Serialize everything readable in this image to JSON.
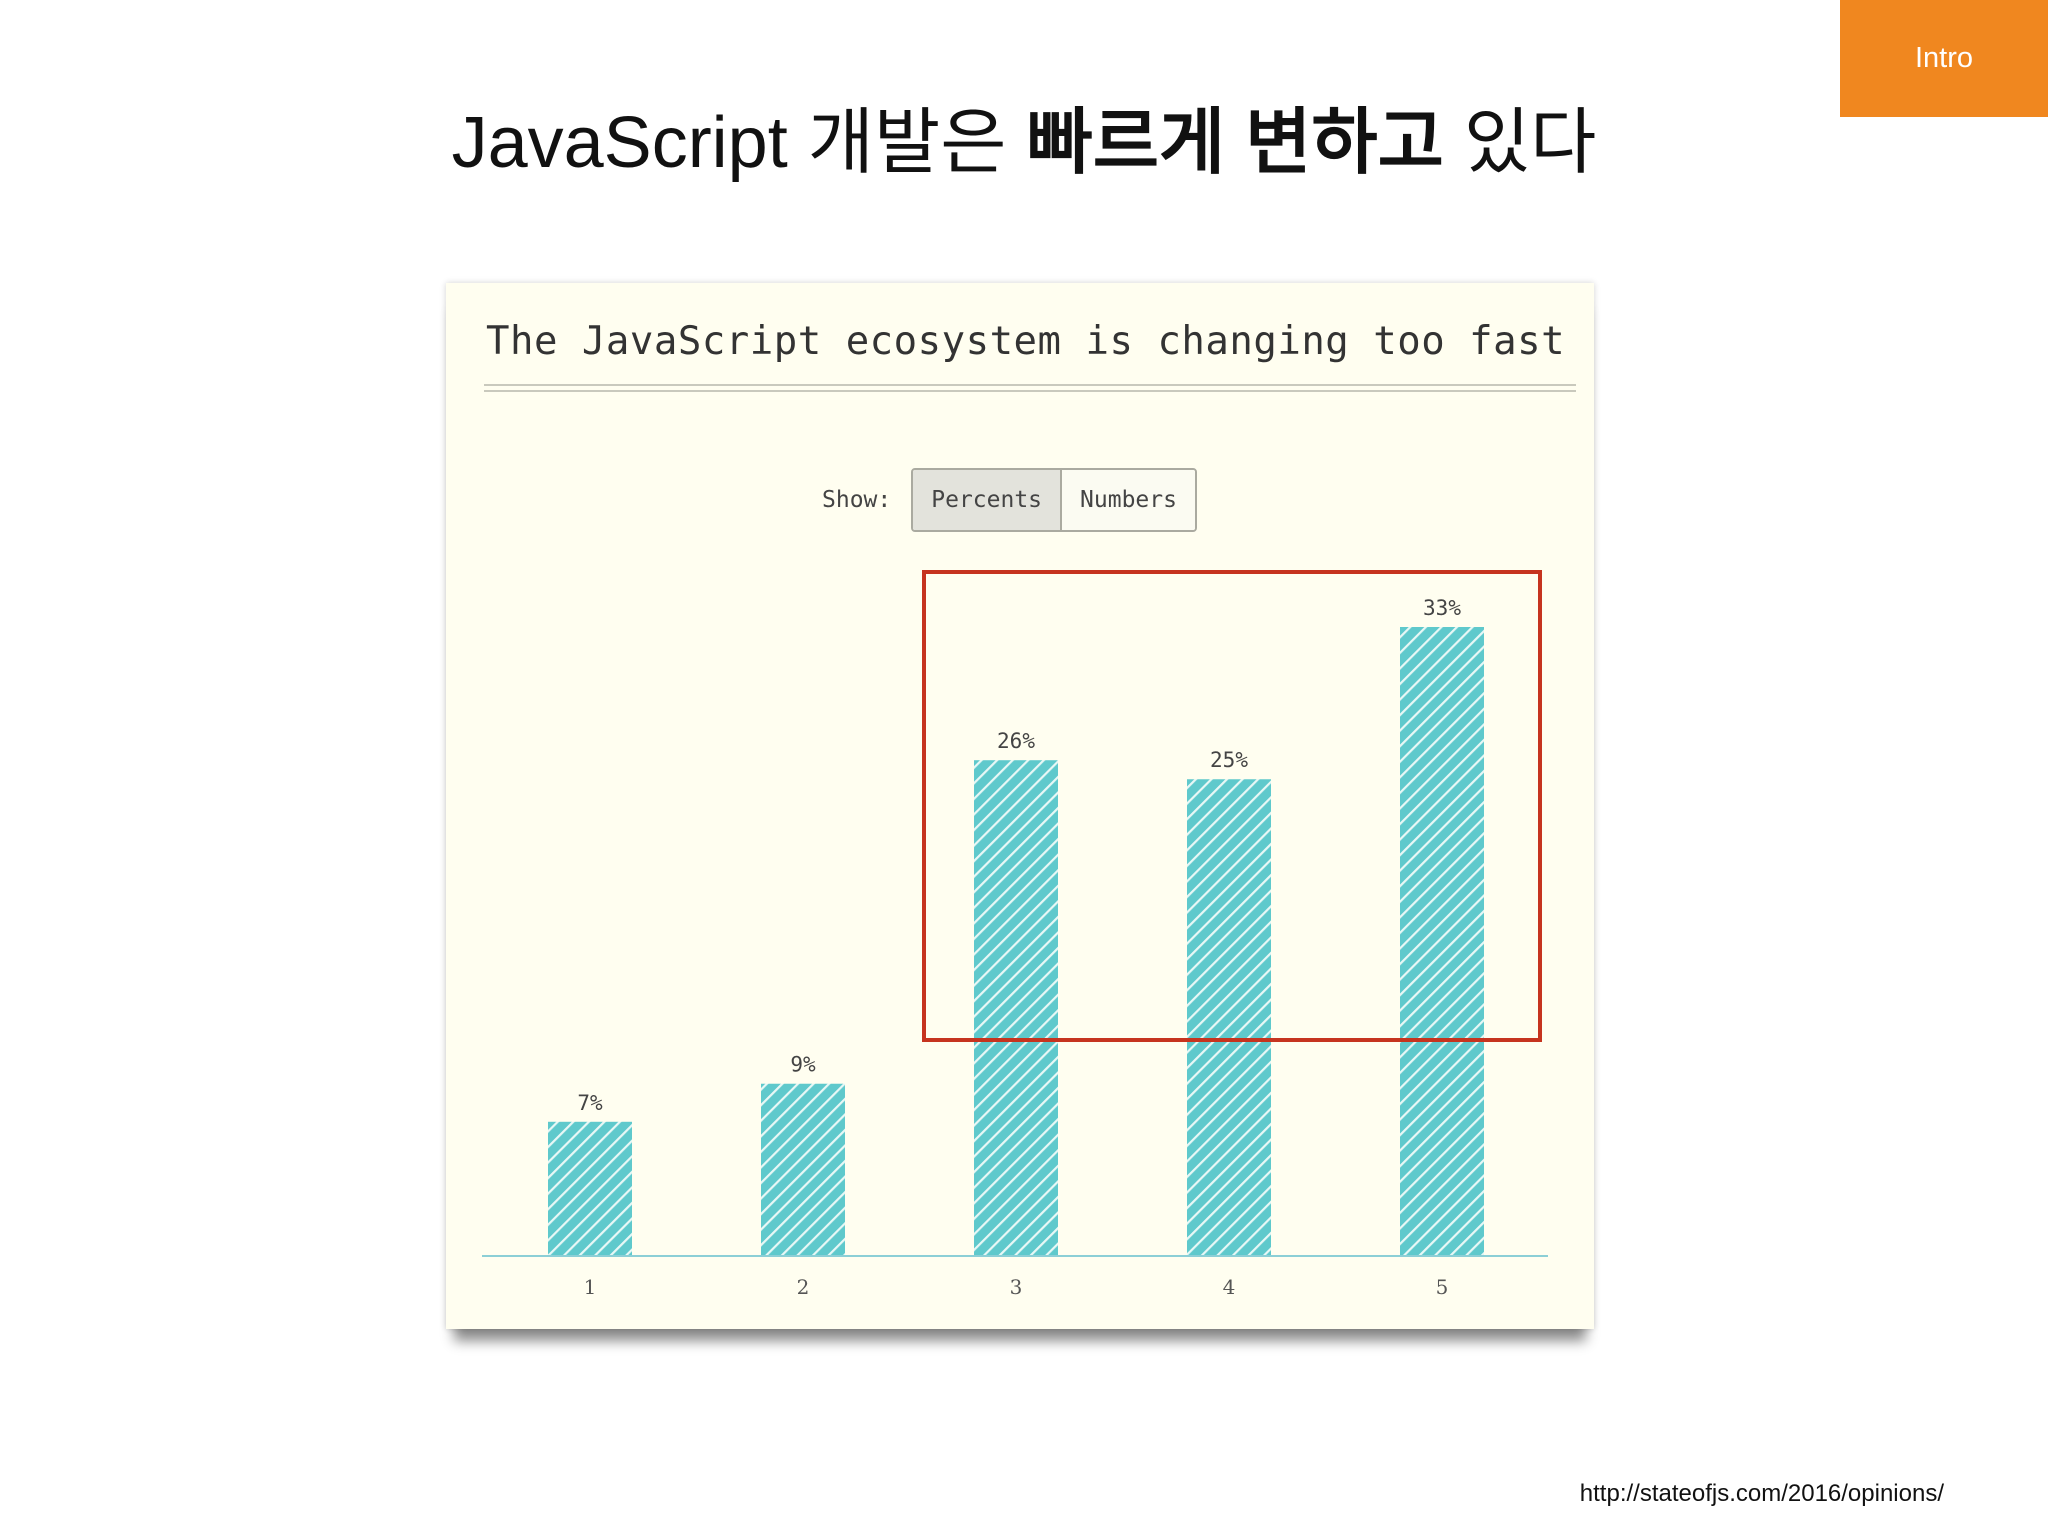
{
  "section_tab": "Intro",
  "slide_title": {
    "normal_before": "JavaScript 개발은 ",
    "bold": "빠르게 변하고",
    "normal_after": " 있다"
  },
  "source_url": "http://stateofjs.com/2016/opinions/",
  "colors": {
    "bar": "#5fc9cc",
    "bar_stripe": "#e8f8f6",
    "axis": "#8ccfd6",
    "highlight": "#c6341f",
    "tab": "#f0871f"
  },
  "toggle": {
    "label": "Show:",
    "options": [
      "Percents",
      "Numbers"
    ],
    "selected": "Percents"
  },
  "chart_data": {
    "type": "bar",
    "title": "The JavaScript ecosystem is changing too fast",
    "categories": [
      "1",
      "2",
      "3",
      "4",
      "5"
    ],
    "values": [
      7,
      9,
      26,
      25,
      33
    ],
    "value_labels": [
      "7%",
      "9%",
      "26%",
      "25%",
      "33%"
    ],
    "unit": "%",
    "xlabel": "",
    "ylabel": "",
    "ylim": [
      0,
      33
    ],
    "grid": false,
    "highlighted_categories": [
      "3",
      "4",
      "5"
    ]
  }
}
